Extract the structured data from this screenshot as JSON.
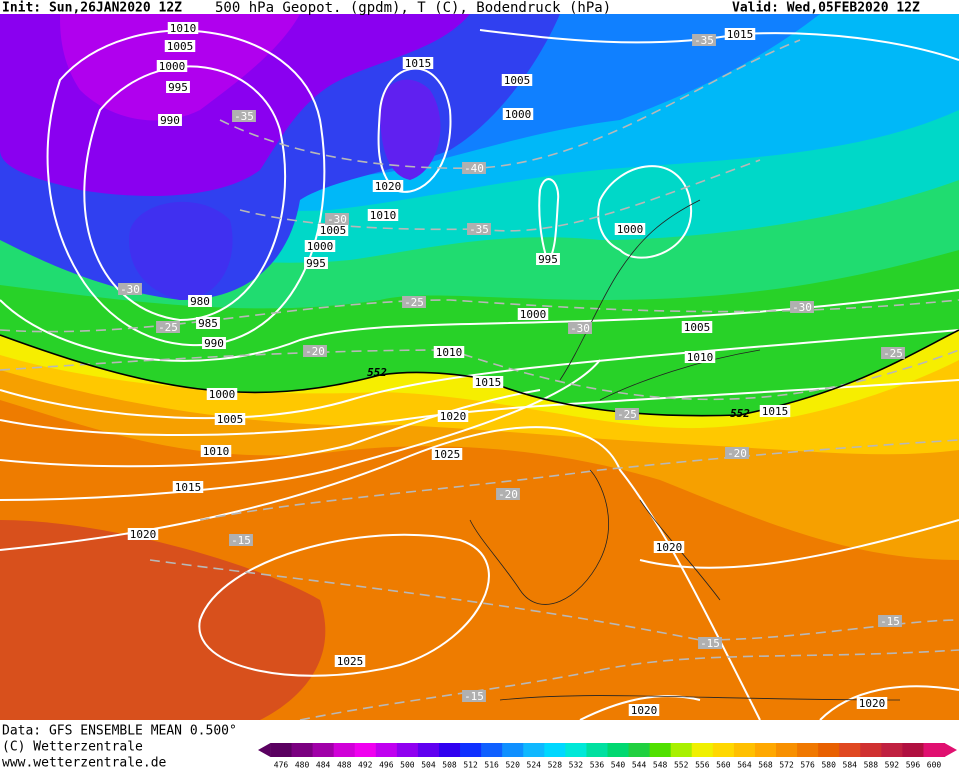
{
  "header": {
    "init": "Init: Sun,26JAN2020 12Z",
    "title": "500 hPa Geopot. (gpdm), T (C), Bodendruck (hPa)",
    "valid": "Valid: Wed,05FEB2020 12Z"
  },
  "footer": {
    "data": "Data: GFS ENSEMBLE MEAN 0.500°",
    "copyright": "(C) Wetterzentrale",
    "url": "www.wetterzentrale.de"
  },
  "colorbar": {
    "ticks": [
      476,
      480,
      484,
      488,
      492,
      496,
      500,
      504,
      508,
      512,
      516,
      520,
      524,
      528,
      532,
      536,
      540,
      544,
      548,
      552,
      556,
      560,
      564,
      568,
      572,
      576,
      580,
      584,
      588,
      592,
      596,
      600
    ]
  },
  "isobar_labels": [
    1010,
    1005,
    1000,
    995,
    990,
    1015,
    1005,
    1000,
    1020,
    1010,
    1005,
    1000,
    995,
    995,
    1000,
    980,
    985,
    990,
    1000,
    1005,
    1010,
    1010,
    1015,
    1015,
    1020,
    1000,
    1005,
    1010,
    1025,
    1015,
    1020,
    1020,
    1025,
    1020,
    1020,
    1015
  ],
  "temperature_labels": [
    -35,
    -35,
    -40,
    -30,
    -35,
    -30,
    -25,
    -25,
    -30,
    -30,
    -25,
    -20,
    -25,
    -20,
    -20,
    -15,
    -15,
    -15,
    -15
  ],
  "geopotential_labels": [
    552,
    552
  ]
}
